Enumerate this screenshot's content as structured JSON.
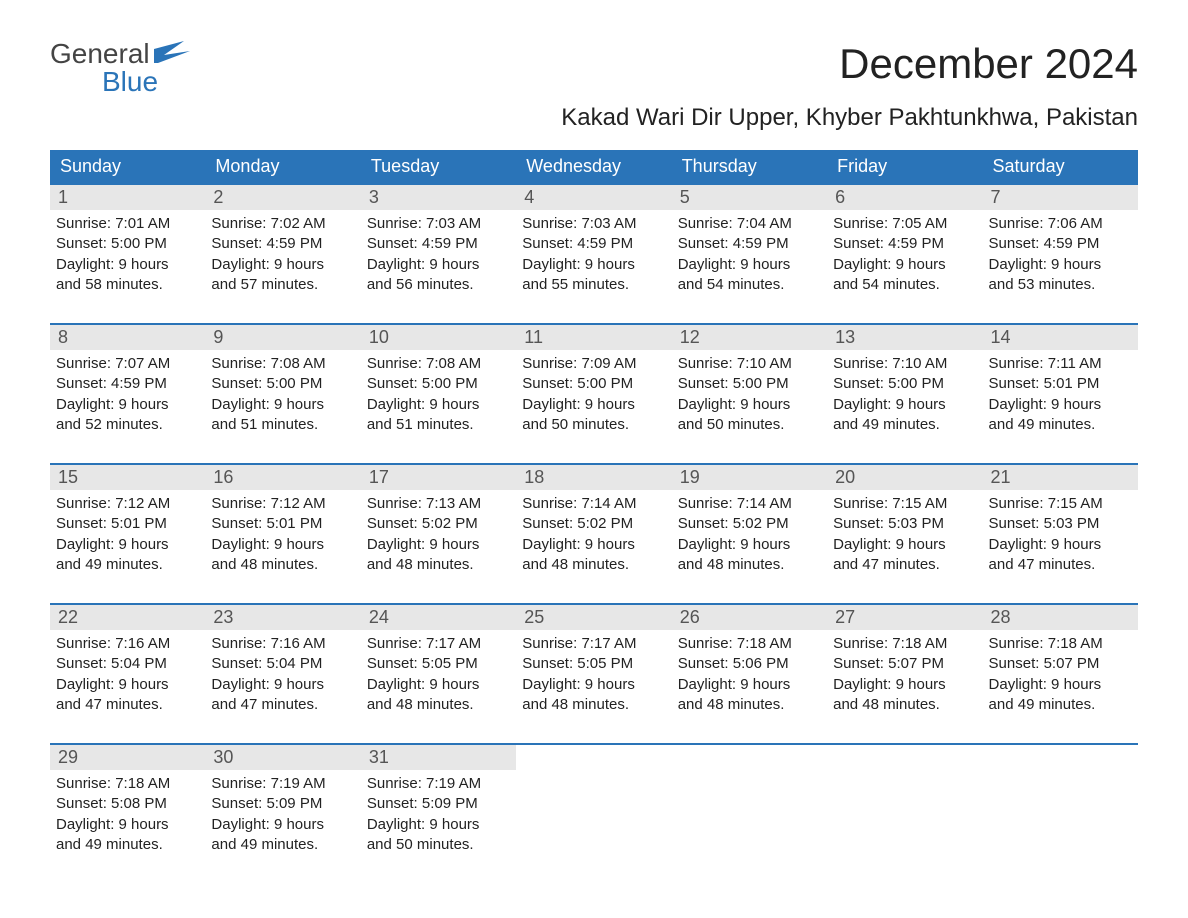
{
  "brand": {
    "top": "General",
    "bottom": "Blue",
    "accent_color": "#2a74b8"
  },
  "title": "December 2024",
  "location": "Kakad Wari Dir Upper, Khyber Pakhtunkhwa, Pakistan",
  "day_headers": [
    "Sunday",
    "Monday",
    "Tuesday",
    "Wednesday",
    "Thursday",
    "Friday",
    "Saturday"
  ],
  "colors": {
    "header_bg": "#2a74b8",
    "header_text": "#ffffff",
    "daynum_bg": "#e7e7e7",
    "daynum_text": "#555555",
    "week_divider": "#2a74b8",
    "body_text": "#222222",
    "background": "#ffffff"
  },
  "fonts": {
    "title_size_pt": 32,
    "location_size_pt": 18,
    "dayhead_size_pt": 14,
    "daynum_size_pt": 14,
    "cell_size_pt": 11
  },
  "weeks": [
    [
      {
        "n": "1",
        "sunrise": "Sunrise: 7:01 AM",
        "sunset": "Sunset: 5:00 PM",
        "d1": "Daylight: 9 hours",
        "d2": "and 58 minutes."
      },
      {
        "n": "2",
        "sunrise": "Sunrise: 7:02 AM",
        "sunset": "Sunset: 4:59 PM",
        "d1": "Daylight: 9 hours",
        "d2": "and 57 minutes."
      },
      {
        "n": "3",
        "sunrise": "Sunrise: 7:03 AM",
        "sunset": "Sunset: 4:59 PM",
        "d1": "Daylight: 9 hours",
        "d2": "and 56 minutes."
      },
      {
        "n": "4",
        "sunrise": "Sunrise: 7:03 AM",
        "sunset": "Sunset: 4:59 PM",
        "d1": "Daylight: 9 hours",
        "d2": "and 55 minutes."
      },
      {
        "n": "5",
        "sunrise": "Sunrise: 7:04 AM",
        "sunset": "Sunset: 4:59 PM",
        "d1": "Daylight: 9 hours",
        "d2": "and 54 minutes."
      },
      {
        "n": "6",
        "sunrise": "Sunrise: 7:05 AM",
        "sunset": "Sunset: 4:59 PM",
        "d1": "Daylight: 9 hours",
        "d2": "and 54 minutes."
      },
      {
        "n": "7",
        "sunrise": "Sunrise: 7:06 AM",
        "sunset": "Sunset: 4:59 PM",
        "d1": "Daylight: 9 hours",
        "d2": "and 53 minutes."
      }
    ],
    [
      {
        "n": "8",
        "sunrise": "Sunrise: 7:07 AM",
        "sunset": "Sunset: 4:59 PM",
        "d1": "Daylight: 9 hours",
        "d2": "and 52 minutes."
      },
      {
        "n": "9",
        "sunrise": "Sunrise: 7:08 AM",
        "sunset": "Sunset: 5:00 PM",
        "d1": "Daylight: 9 hours",
        "d2": "and 51 minutes."
      },
      {
        "n": "10",
        "sunrise": "Sunrise: 7:08 AM",
        "sunset": "Sunset: 5:00 PM",
        "d1": "Daylight: 9 hours",
        "d2": "and 51 minutes."
      },
      {
        "n": "11",
        "sunrise": "Sunrise: 7:09 AM",
        "sunset": "Sunset: 5:00 PM",
        "d1": "Daylight: 9 hours",
        "d2": "and 50 minutes."
      },
      {
        "n": "12",
        "sunrise": "Sunrise: 7:10 AM",
        "sunset": "Sunset: 5:00 PM",
        "d1": "Daylight: 9 hours",
        "d2": "and 50 minutes."
      },
      {
        "n": "13",
        "sunrise": "Sunrise: 7:10 AM",
        "sunset": "Sunset: 5:00 PM",
        "d1": "Daylight: 9 hours",
        "d2": "and 49 minutes."
      },
      {
        "n": "14",
        "sunrise": "Sunrise: 7:11 AM",
        "sunset": "Sunset: 5:01 PM",
        "d1": "Daylight: 9 hours",
        "d2": "and 49 minutes."
      }
    ],
    [
      {
        "n": "15",
        "sunrise": "Sunrise: 7:12 AM",
        "sunset": "Sunset: 5:01 PM",
        "d1": "Daylight: 9 hours",
        "d2": "and 49 minutes."
      },
      {
        "n": "16",
        "sunrise": "Sunrise: 7:12 AM",
        "sunset": "Sunset: 5:01 PM",
        "d1": "Daylight: 9 hours",
        "d2": "and 48 minutes."
      },
      {
        "n": "17",
        "sunrise": "Sunrise: 7:13 AM",
        "sunset": "Sunset: 5:02 PM",
        "d1": "Daylight: 9 hours",
        "d2": "and 48 minutes."
      },
      {
        "n": "18",
        "sunrise": "Sunrise: 7:14 AM",
        "sunset": "Sunset: 5:02 PM",
        "d1": "Daylight: 9 hours",
        "d2": "and 48 minutes."
      },
      {
        "n": "19",
        "sunrise": "Sunrise: 7:14 AM",
        "sunset": "Sunset: 5:02 PM",
        "d1": "Daylight: 9 hours",
        "d2": "and 48 minutes."
      },
      {
        "n": "20",
        "sunrise": "Sunrise: 7:15 AM",
        "sunset": "Sunset: 5:03 PM",
        "d1": "Daylight: 9 hours",
        "d2": "and 47 minutes."
      },
      {
        "n": "21",
        "sunrise": "Sunrise: 7:15 AM",
        "sunset": "Sunset: 5:03 PM",
        "d1": "Daylight: 9 hours",
        "d2": "and 47 minutes."
      }
    ],
    [
      {
        "n": "22",
        "sunrise": "Sunrise: 7:16 AM",
        "sunset": "Sunset: 5:04 PM",
        "d1": "Daylight: 9 hours",
        "d2": "and 47 minutes."
      },
      {
        "n": "23",
        "sunrise": "Sunrise: 7:16 AM",
        "sunset": "Sunset: 5:04 PM",
        "d1": "Daylight: 9 hours",
        "d2": "and 47 minutes."
      },
      {
        "n": "24",
        "sunrise": "Sunrise: 7:17 AM",
        "sunset": "Sunset: 5:05 PM",
        "d1": "Daylight: 9 hours",
        "d2": "and 48 minutes."
      },
      {
        "n": "25",
        "sunrise": "Sunrise: 7:17 AM",
        "sunset": "Sunset: 5:05 PM",
        "d1": "Daylight: 9 hours",
        "d2": "and 48 minutes."
      },
      {
        "n": "26",
        "sunrise": "Sunrise: 7:18 AM",
        "sunset": "Sunset: 5:06 PM",
        "d1": "Daylight: 9 hours",
        "d2": "and 48 minutes."
      },
      {
        "n": "27",
        "sunrise": "Sunrise: 7:18 AM",
        "sunset": "Sunset: 5:07 PM",
        "d1": "Daylight: 9 hours",
        "d2": "and 48 minutes."
      },
      {
        "n": "28",
        "sunrise": "Sunrise: 7:18 AM",
        "sunset": "Sunset: 5:07 PM",
        "d1": "Daylight: 9 hours",
        "d2": "and 49 minutes."
      }
    ],
    [
      {
        "n": "29",
        "sunrise": "Sunrise: 7:18 AM",
        "sunset": "Sunset: 5:08 PM",
        "d1": "Daylight: 9 hours",
        "d2": "and 49 minutes."
      },
      {
        "n": "30",
        "sunrise": "Sunrise: 7:19 AM",
        "sunset": "Sunset: 5:09 PM",
        "d1": "Daylight: 9 hours",
        "d2": "and 49 minutes."
      },
      {
        "n": "31",
        "sunrise": "Sunrise: 7:19 AM",
        "sunset": "Sunset: 5:09 PM",
        "d1": "Daylight: 9 hours",
        "d2": "and 50 minutes."
      },
      {
        "empty": true
      },
      {
        "empty": true
      },
      {
        "empty": true
      },
      {
        "empty": true
      }
    ]
  ]
}
